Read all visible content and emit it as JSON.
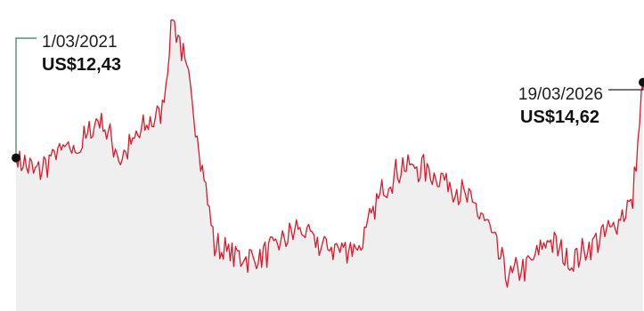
{
  "chart_data": {
    "type": "area",
    "title": "",
    "xlabel": "",
    "ylabel": "",
    "x_range": [
      "2021-03-01",
      "2026-03-19"
    ],
    "ylim": [
      8,
      17
    ],
    "grid": false,
    "colors": {
      "line": "#e0182a",
      "fill": "#e9e9e9",
      "start_leader": "#2f7d4f",
      "end_leader": "#222222",
      "marker": "#111111"
    },
    "annotations": [
      {
        "date": "1/03/2021",
        "price": "US$12,43"
      },
      {
        "date": "19/03/2026",
        "price": "US$14,62"
      }
    ],
    "series": [
      {
        "x": [
          "2021-03",
          "2021-05",
          "2021-07",
          "2021-09",
          "2021-11",
          "2022-01",
          "2022-03",
          "2022-05",
          "2022-06",
          "2022-07",
          "2022-08",
          "2022-10",
          "2022-12",
          "2023-02",
          "2023-04",
          "2023-06",
          "2023-08",
          "2023-10",
          "2023-12",
          "2024-02",
          "2024-04",
          "2024-06",
          "2024-08",
          "2024-10",
          "2024-12",
          "2025-02",
          "2025-04",
          "2025-06",
          "2025-08",
          "2025-10",
          "2025-12",
          "2026-02",
          "2026-03"
        ],
        "values": [
          12.43,
          12.0,
          12.6,
          12.7,
          13.6,
          12.4,
          13.2,
          13.8,
          16.5,
          15.4,
          13.8,
          9.9,
          9.6,
          9.5,
          9.9,
          10.4,
          9.9,
          9.8,
          9.9,
          11.5,
          12.2,
          12.1,
          11.8,
          11.3,
          10.6,
          9.0,
          9.3,
          10.1,
          9.4,
          9.9,
          10.4,
          11.2,
          14.62
        ]
      }
    ]
  }
}
